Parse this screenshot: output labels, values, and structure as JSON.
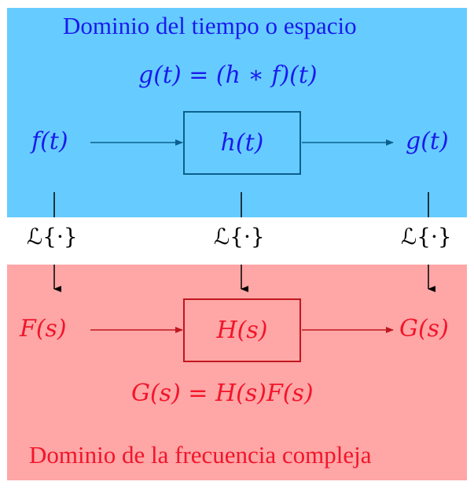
{
  "time_domain": {
    "title": "Dominio del tiempo o espacio",
    "equation": "g(t) = (h ∗ f)(t)",
    "input": "f(t)",
    "system": "h(t)",
    "output": "g(t)"
  },
  "transform": {
    "left": "ℒ{·}",
    "center": "ℒ{·}",
    "right": "ℒ{·}"
  },
  "frequency_domain": {
    "title": "Dominio de la frecuencia compleja",
    "equation": "G(s) = H(s)F(s)",
    "input": "F(s)",
    "system": "H(s)",
    "output": "G(s)"
  },
  "colors": {
    "time_panel": "#66ccff",
    "frequency_panel": "#ffa6a6",
    "time_text": "#1a1aee",
    "frequency_text": "#f2152a",
    "time_arrow": "#0b5f8c",
    "frequency_arrow": "#c0171e"
  }
}
